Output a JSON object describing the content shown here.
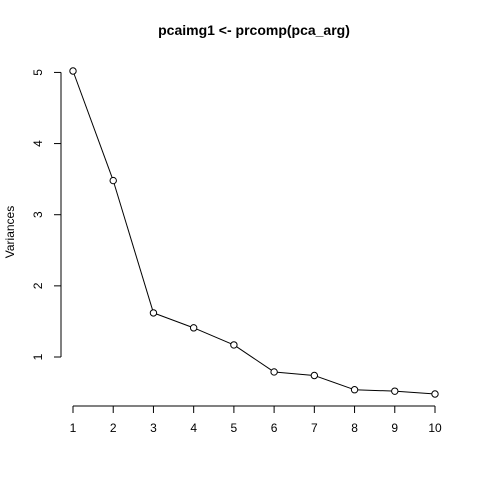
{
  "chart_data": {
    "type": "line",
    "title": "pcaimg1 <- prcomp(pca_arg)",
    "xlabel": "",
    "ylabel": "Variances",
    "x": [
      1,
      2,
      3,
      4,
      5,
      6,
      7,
      8,
      9,
      10
    ],
    "values": [
      5.02,
      3.48,
      1.62,
      1.41,
      1.17,
      0.79,
      0.74,
      0.54,
      0.52,
      0.48
    ],
    "x_ticks": [
      "1",
      "2",
      "3",
      "4",
      "5",
      "6",
      "7",
      "8",
      "9",
      "10"
    ],
    "y_ticks": [
      "1",
      "2",
      "3",
      "4",
      "5"
    ],
    "xlim": [
      1,
      10
    ],
    "ylim": [
      0.48,
      5.02
    ],
    "markers": "open-circle",
    "grid": false,
    "colors": {
      "line": "#000000",
      "marker": "#000000"
    }
  }
}
